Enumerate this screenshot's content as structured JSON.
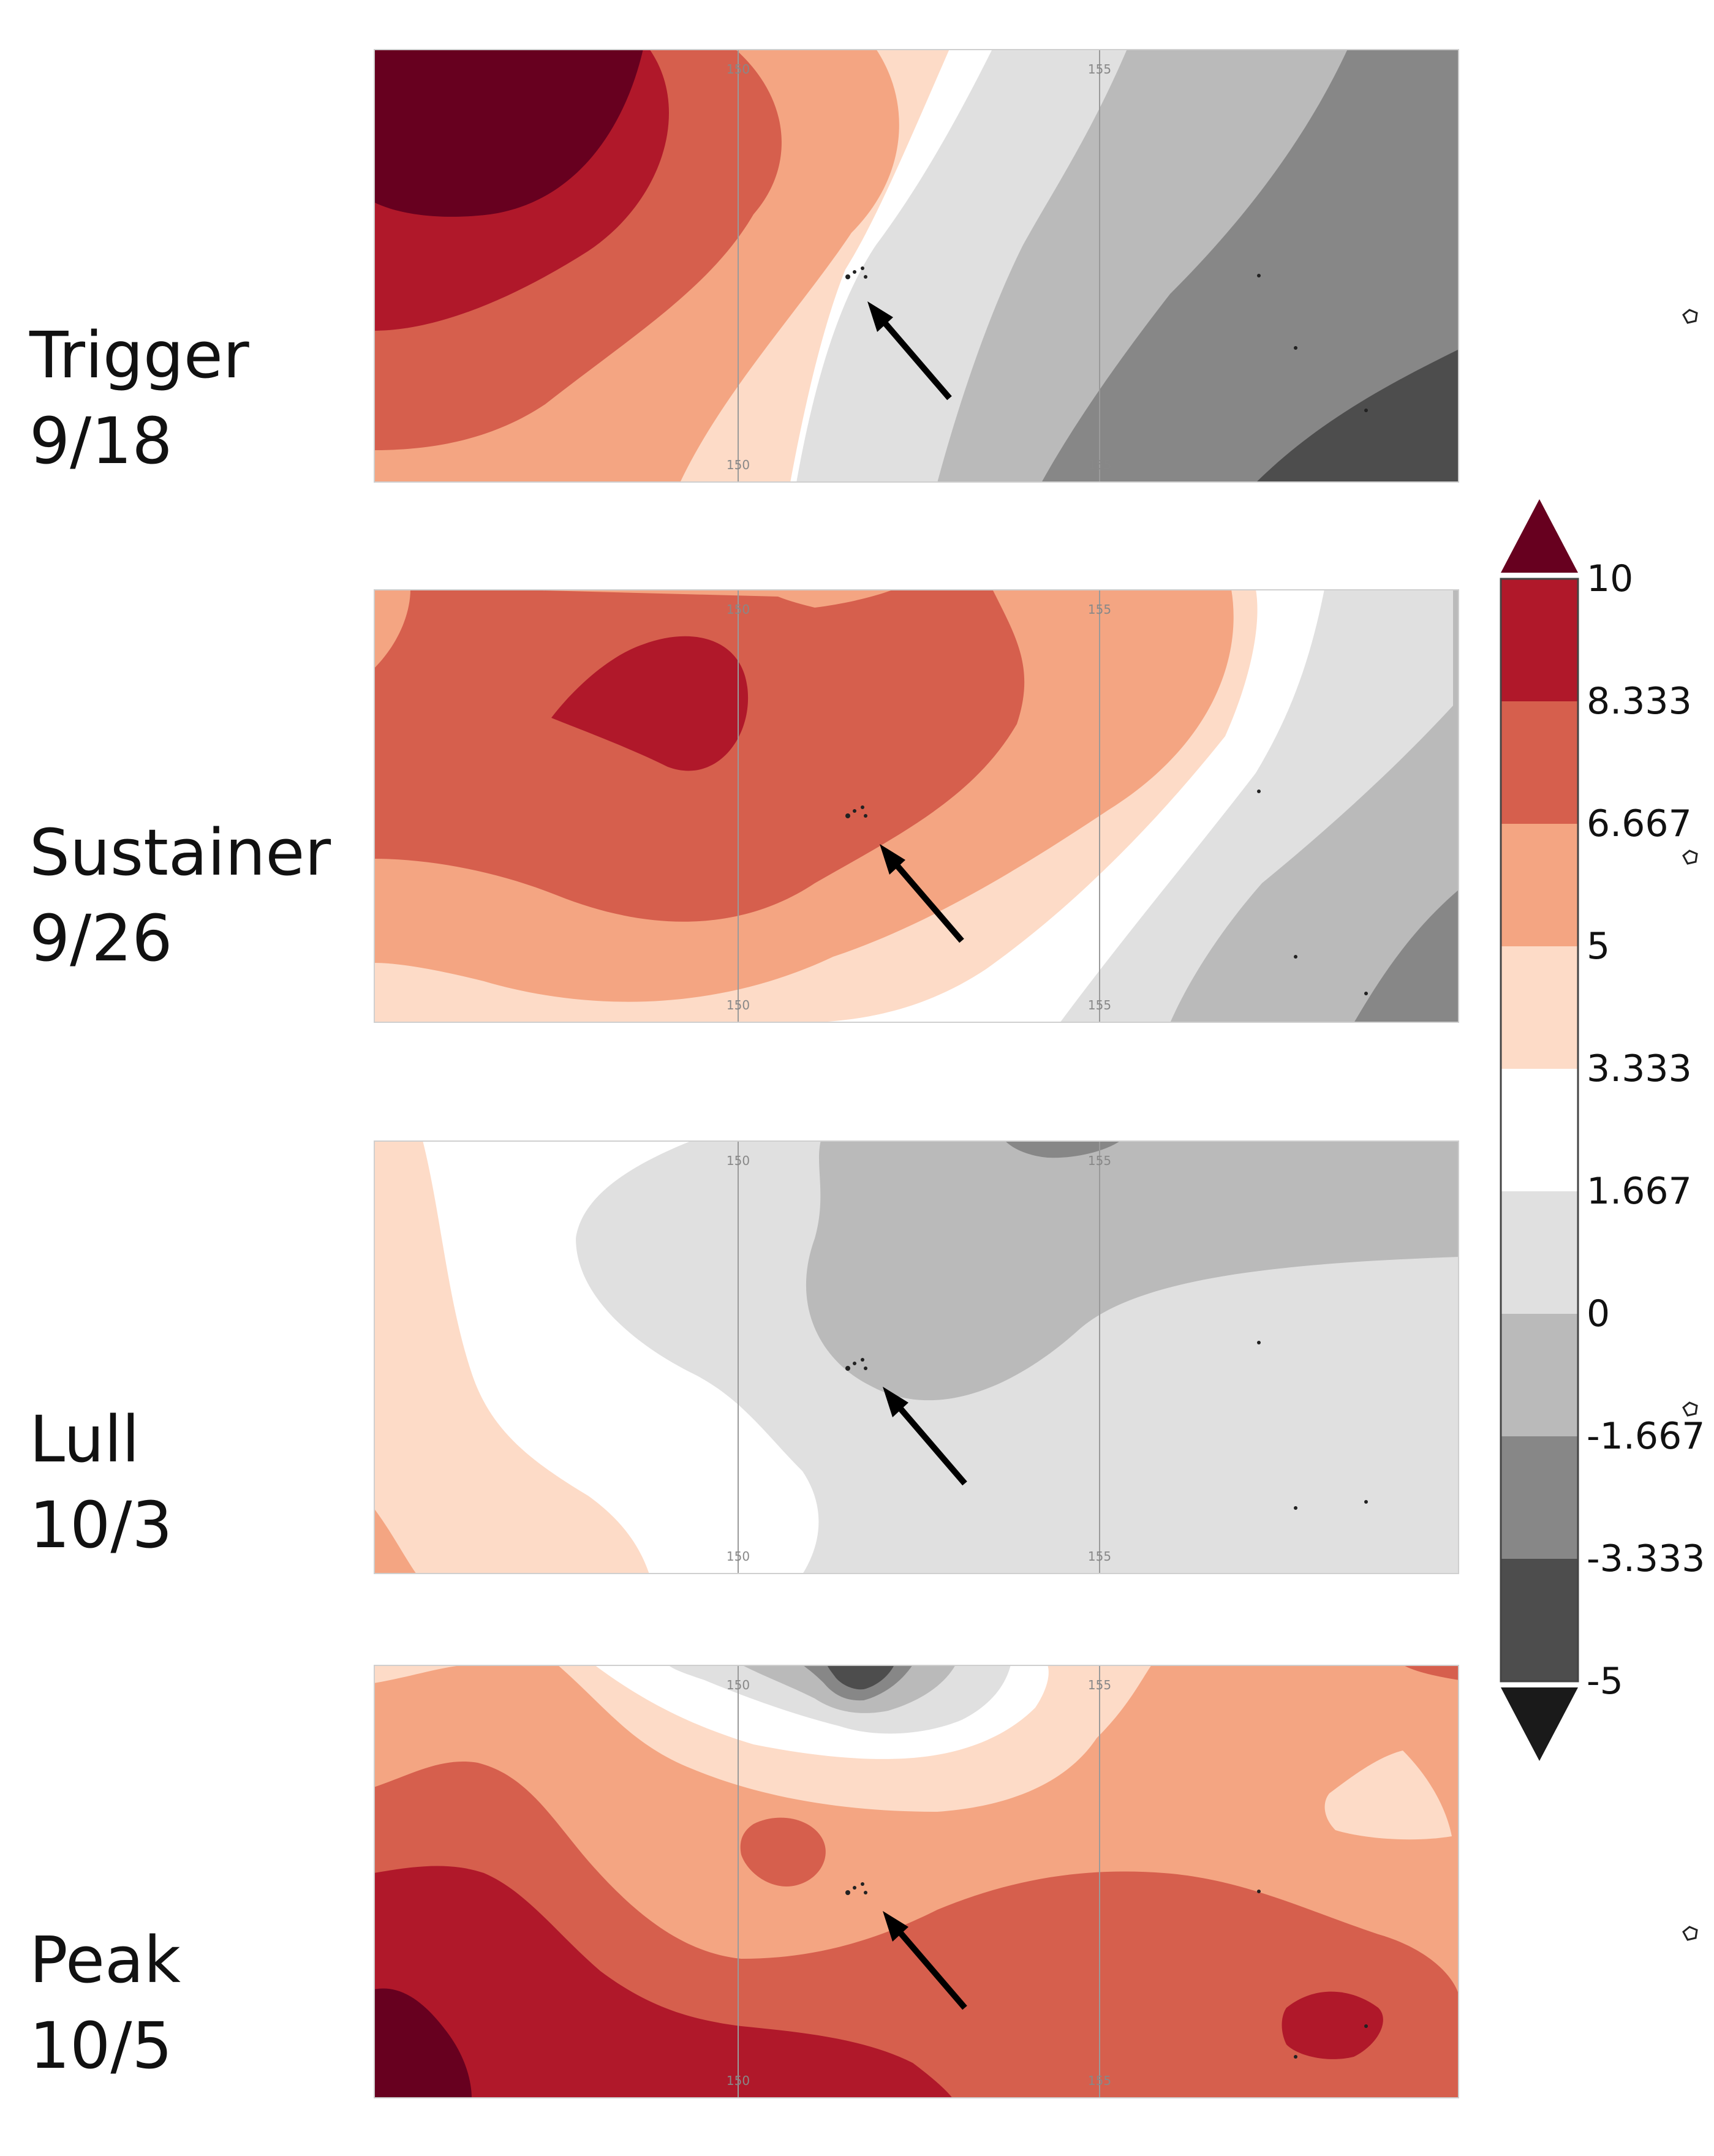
{
  "panels": [
    {
      "title": "Trigger",
      "date": "9/18",
      "ticks_top": [
        "150",
        "155"
      ],
      "ticks_bottom": [
        "150",
        "155"
      ]
    },
    {
      "title": "Sustainer",
      "date": "9/26",
      "ticks_top": [
        "150",
        "155"
      ],
      "ticks_bottom": [
        "150",
        "155"
      ]
    },
    {
      "title": "Lull",
      "date": "10/3",
      "ticks_top": [
        "150",
        "155"
      ],
      "ticks_bottom": [
        "150",
        "155"
      ]
    },
    {
      "title": "Peak",
      "date": "10/5",
      "ticks_top": [
        "150",
        "155"
      ],
      "ticks_bottom": [
        "150",
        "155"
      ]
    }
  ],
  "chart_data": {
    "type": "heatmap",
    "colorbar": {
      "boundaries": [
        "10",
        "8.333",
        "6.667",
        "5",
        "3.333",
        "1.667",
        "0",
        "-1.667",
        "-3.333",
        "-5"
      ],
      "range": [
        -5,
        10
      ],
      "extend": "both",
      "colors": [
        "#b0182a",
        "#d65f4d",
        "#f4a582",
        "#fddbc7",
        "#ffffff",
        "#e0e0e0",
        "#bababa",
        "#878787",
        "#4d4d4d"
      ],
      "over_color": "#67001f",
      "under_color": "#1a1a1a"
    },
    "longitude_ticks": [
      "150",
      "155"
    ],
    "arrows": "one arrow per panel pointing to the island group near the map centre"
  }
}
